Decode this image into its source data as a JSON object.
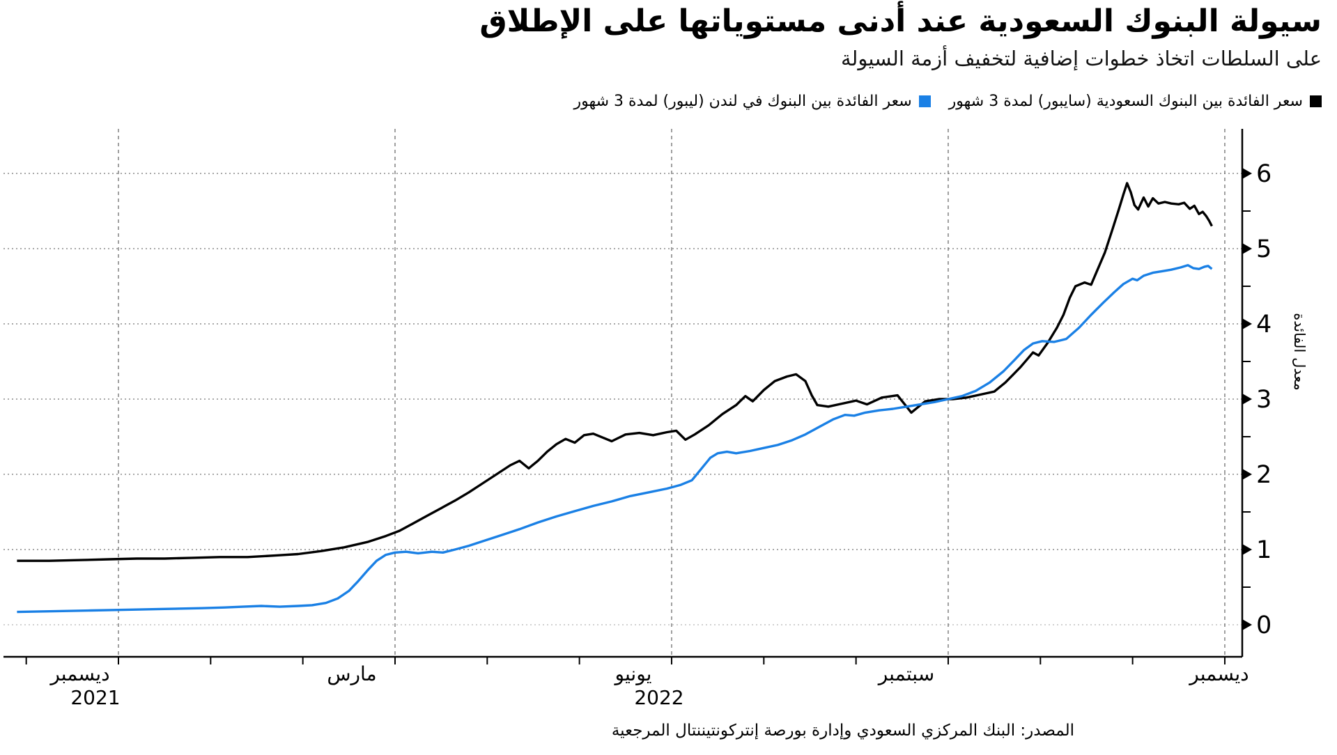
{
  "header": {
    "title": "سيولة البنوك السعودية عند أدنى مستوياتها على الإطلاق",
    "subtitle": "على السلطات اتخاذ خطوات إضافية لتخفيف أزمة السيولة"
  },
  "legend": [
    {
      "label": "سعر الفائدة بين البنوك السعودية (سايبور) لمدة 3 شهور",
      "color": "#000000"
    },
    {
      "label": "سعر الفائدة بين البنوك في لندن (ليبور) لمدة 3 شهور",
      "color": "#1a80e5"
    }
  ],
  "source": "المصدر: البنك المركزي السعودي وإدارة بورصة إنتركونتيننتال المرجعية",
  "colors": {
    "saibor_line": "#000000",
    "libor_line": "#1a80e5",
    "gridline": "#8a8a8a",
    "zero_gridline": "#c2c2c2",
    "axis": "#000000"
  },
  "chart_data": {
    "type": "line",
    "title": "سيولة البنوك السعودية عند أدنى مستوياتها على الإطلاق",
    "subtitle": "على السلطات اتخاذ خطوات إضافية لتخفيف أزمة السيولة",
    "ylabel": "معدل الفائدة",
    "yticks": [
      0,
      1,
      2,
      3,
      4,
      5,
      6
    ],
    "ylim": [
      -0.43,
      6.6
    ],
    "x_unit": "months_since_dec_1_2021",
    "xlim_months": [
      -1.1,
      12.25
    ],
    "grid": "both_dashed",
    "legend_position": "top_right",
    "x_ticks": [
      {
        "label": "ديسمبر",
        "year": "2021",
        "m": 0
      },
      {
        "label": "مارس",
        "year": "",
        "m": 3
      },
      {
        "label": "يونيو",
        "year": "2022",
        "m": 6
      },
      {
        "label": "سبتمبر",
        "year": "",
        "m": 9
      },
      {
        "label": "ديسمبر",
        "year": "",
        "m": 12
      }
    ],
    "series": [
      {
        "name": "سعر الفائدة بين البنوك السعودية (سايبور) لمدة 3 شهور",
        "color": "#000000",
        "points": [
          [
            -1.1,
            0.85
          ],
          [
            -0.75,
            0.85
          ],
          [
            -0.4,
            0.86
          ],
          [
            -0.1,
            0.87
          ],
          [
            0.2,
            0.88
          ],
          [
            0.5,
            0.88
          ],
          [
            0.8,
            0.89
          ],
          [
            1.1,
            0.9
          ],
          [
            1.4,
            0.9
          ],
          [
            1.7,
            0.92
          ],
          [
            1.95,
            0.94
          ],
          [
            2.2,
            0.98
          ],
          [
            2.45,
            1.03
          ],
          [
            2.7,
            1.1
          ],
          [
            2.9,
            1.18
          ],
          [
            3.05,
            1.25
          ],
          [
            3.2,
            1.35
          ],
          [
            3.35,
            1.45
          ],
          [
            3.5,
            1.55
          ],
          [
            3.65,
            1.65
          ],
          [
            3.8,
            1.76
          ],
          [
            3.95,
            1.88
          ],
          [
            4.1,
            2.0
          ],
          [
            4.25,
            2.12
          ],
          [
            4.35,
            2.18
          ],
          [
            4.45,
            2.08
          ],
          [
            4.55,
            2.18
          ],
          [
            4.65,
            2.3
          ],
          [
            4.75,
            2.4
          ],
          [
            4.85,
            2.47
          ],
          [
            4.95,
            2.42
          ],
          [
            5.05,
            2.52
          ],
          [
            5.15,
            2.54
          ],
          [
            5.25,
            2.49
          ],
          [
            5.35,
            2.44
          ],
          [
            5.5,
            2.53
          ],
          [
            5.65,
            2.55
          ],
          [
            5.8,
            2.52
          ],
          [
            5.95,
            2.56
          ],
          [
            6.05,
            2.58
          ],
          [
            6.15,
            2.46
          ],
          [
            6.25,
            2.53
          ],
          [
            6.4,
            2.65
          ],
          [
            6.55,
            2.8
          ],
          [
            6.7,
            2.92
          ],
          [
            6.8,
            3.04
          ],
          [
            6.88,
            2.97
          ],
          [
            7.0,
            3.12
          ],
          [
            7.12,
            3.24
          ],
          [
            7.25,
            3.3
          ],
          [
            7.35,
            3.33
          ],
          [
            7.45,
            3.24
          ],
          [
            7.52,
            3.05
          ],
          [
            7.58,
            2.92
          ],
          [
            7.7,
            2.9
          ],
          [
            7.85,
            2.94
          ],
          [
            8.0,
            2.98
          ],
          [
            8.12,
            2.93
          ],
          [
            8.28,
            3.02
          ],
          [
            8.45,
            3.05
          ],
          [
            8.6,
            2.82
          ],
          [
            8.75,
            2.97
          ],
          [
            8.9,
            3.0
          ],
          [
            9.05,
            3.0
          ],
          [
            9.2,
            3.02
          ],
          [
            9.35,
            3.06
          ],
          [
            9.5,
            3.1
          ],
          [
            9.62,
            3.22
          ],
          [
            9.7,
            3.32
          ],
          [
            9.78,
            3.42
          ],
          [
            9.85,
            3.52
          ],
          [
            9.92,
            3.62
          ],
          [
            9.98,
            3.58
          ],
          [
            10.08,
            3.75
          ],
          [
            10.18,
            3.95
          ],
          [
            10.25,
            4.12
          ],
          [
            10.32,
            4.35
          ],
          [
            10.38,
            4.5
          ],
          [
            10.48,
            4.55
          ],
          [
            10.55,
            4.52
          ],
          [
            10.62,
            4.72
          ],
          [
            10.7,
            4.95
          ],
          [
            10.78,
            5.25
          ],
          [
            10.85,
            5.52
          ],
          [
            10.9,
            5.72
          ],
          [
            10.94,
            5.87
          ],
          [
            10.98,
            5.75
          ],
          [
            11.02,
            5.58
          ],
          [
            11.06,
            5.52
          ],
          [
            11.12,
            5.68
          ],
          [
            11.17,
            5.56
          ],
          [
            11.22,
            5.67
          ],
          [
            11.28,
            5.6
          ],
          [
            11.35,
            5.62
          ],
          [
            11.42,
            5.6
          ],
          [
            11.5,
            5.59
          ],
          [
            11.56,
            5.61
          ],
          [
            11.62,
            5.53
          ],
          [
            11.67,
            5.57
          ],
          [
            11.72,
            5.46
          ],
          [
            11.76,
            5.49
          ],
          [
            11.8,
            5.43
          ],
          [
            11.83,
            5.37
          ],
          [
            11.86,
            5.3
          ]
        ]
      },
      {
        "name": "سعر الفائدة بين البنوك في لندن (ليبور) لمدة 3 شهور",
        "color": "#1a80e5",
        "points": [
          [
            -1.1,
            0.17
          ],
          [
            -0.7,
            0.18
          ],
          [
            -0.3,
            0.19
          ],
          [
            0.1,
            0.2
          ],
          [
            0.5,
            0.21
          ],
          [
            0.9,
            0.22
          ],
          [
            1.15,
            0.23
          ],
          [
            1.35,
            0.24
          ],
          [
            1.55,
            0.25
          ],
          [
            1.75,
            0.24
          ],
          [
            1.95,
            0.25
          ],
          [
            2.1,
            0.26
          ],
          [
            2.25,
            0.29
          ],
          [
            2.38,
            0.35
          ],
          [
            2.5,
            0.45
          ],
          [
            2.6,
            0.58
          ],
          [
            2.7,
            0.72
          ],
          [
            2.8,
            0.85
          ],
          [
            2.9,
            0.93
          ],
          [
            3.0,
            0.96
          ],
          [
            3.12,
            0.97
          ],
          [
            3.25,
            0.95
          ],
          [
            3.4,
            0.97
          ],
          [
            3.52,
            0.96
          ],
          [
            3.65,
            1.0
          ],
          [
            3.8,
            1.05
          ],
          [
            3.95,
            1.11
          ],
          [
            4.15,
            1.19
          ],
          [
            4.35,
            1.27
          ],
          [
            4.55,
            1.36
          ],
          [
            4.75,
            1.44
          ],
          [
            4.95,
            1.51
          ],
          [
            5.15,
            1.58
          ],
          [
            5.35,
            1.64
          ],
          [
            5.55,
            1.71
          ],
          [
            5.75,
            1.76
          ],
          [
            5.95,
            1.81
          ],
          [
            6.1,
            1.86
          ],
          [
            6.22,
            1.92
          ],
          [
            6.32,
            2.07
          ],
          [
            6.42,
            2.22
          ],
          [
            6.5,
            2.28
          ],
          [
            6.6,
            2.3
          ],
          [
            6.7,
            2.28
          ],
          [
            6.85,
            2.31
          ],
          [
            7.0,
            2.35
          ],
          [
            7.15,
            2.39
          ],
          [
            7.3,
            2.45
          ],
          [
            7.45,
            2.53
          ],
          [
            7.6,
            2.63
          ],
          [
            7.75,
            2.73
          ],
          [
            7.88,
            2.79
          ],
          [
            7.98,
            2.78
          ],
          [
            8.1,
            2.82
          ],
          [
            8.25,
            2.85
          ],
          [
            8.4,
            2.87
          ],
          [
            8.55,
            2.9
          ],
          [
            8.7,
            2.93
          ],
          [
            8.85,
            2.96
          ],
          [
            9.0,
            3.0
          ],
          [
            9.15,
            3.04
          ],
          [
            9.3,
            3.11
          ],
          [
            9.45,
            3.22
          ],
          [
            9.6,
            3.37
          ],
          [
            9.72,
            3.52
          ],
          [
            9.82,
            3.65
          ],
          [
            9.92,
            3.74
          ],
          [
            10.02,
            3.77
          ],
          [
            10.15,
            3.76
          ],
          [
            10.28,
            3.8
          ],
          [
            10.42,
            3.95
          ],
          [
            10.55,
            4.12
          ],
          [
            10.68,
            4.28
          ],
          [
            10.8,
            4.42
          ],
          [
            10.9,
            4.53
          ],
          [
            11.0,
            4.6
          ],
          [
            11.05,
            4.58
          ],
          [
            11.12,
            4.64
          ],
          [
            11.22,
            4.68
          ],
          [
            11.32,
            4.7
          ],
          [
            11.42,
            4.72
          ],
          [
            11.52,
            4.75
          ],
          [
            11.6,
            4.78
          ],
          [
            11.66,
            4.74
          ],
          [
            11.72,
            4.73
          ],
          [
            11.78,
            4.76
          ],
          [
            11.82,
            4.77
          ],
          [
            11.86,
            4.73
          ]
        ]
      }
    ]
  }
}
